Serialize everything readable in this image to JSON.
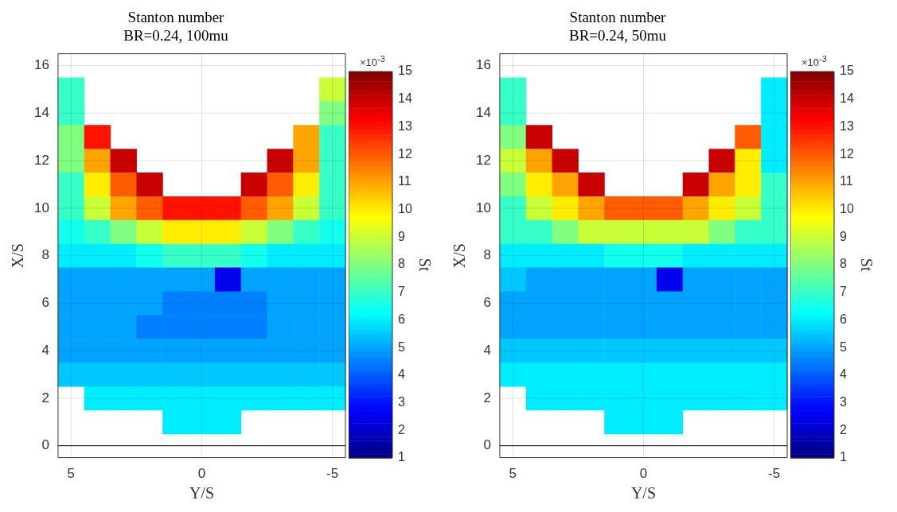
{
  "chart_data": [
    {
      "type": "heatmap",
      "title": "Stanton number",
      "subtitle": "BR=0.24, 100mu",
      "xlabel": "Y/S",
      "ylabel": "X/S",
      "clabel": "St",
      "annotations": [
        "×10$^{-3}$"
      ],
      "grid": true,
      "categories": [
        "5",
        null,
        null,
        null,
        null,
        "0",
        null,
        null,
        null,
        null,
        "-5"
      ],
      "y_categories": [
        "16",
        null,
        "14",
        null,
        "12",
        null,
        "10",
        null,
        "8",
        null,
        "6",
        null,
        "4",
        null,
        "2",
        null,
        "0"
      ],
      "ref_lines": [
        {
          "axis": "y",
          "value": "0",
          "color": "#000000"
        }
      ],
      "clim": [
        1,
        15
      ],
      "cticks": [
        1,
        2,
        3,
        4,
        5,
        6,
        7,
        8,
        9,
        10,
        11,
        12,
        13,
        14,
        15
      ],
      "cells": [
        [
          null,
          null,
          null,
          null,
          null,
          null,
          null,
          null,
          null,
          null,
          null
        ],
        [
          7,
          null,
          null,
          null,
          null,
          null,
          null,
          null,
          null,
          null,
          9
        ],
        [
          7,
          null,
          null,
          null,
          null,
          null,
          null,
          null,
          null,
          null,
          8
        ],
        [
          8,
          13,
          null,
          null,
          null,
          null,
          null,
          null,
          null,
          11,
          7
        ],
        [
          8,
          11,
          14,
          null,
          null,
          null,
          null,
          null,
          14,
          11,
          7
        ],
        [
          7,
          10,
          12,
          14,
          null,
          null,
          null,
          14,
          12,
          10,
          7
        ],
        [
          7,
          9,
          11,
          12,
          13,
          13,
          13,
          12,
          11,
          9,
          7
        ],
        [
          6.5,
          7,
          8,
          9,
          10,
          10,
          10,
          9,
          8,
          7,
          6.5
        ],
        [
          6,
          6,
          6,
          6.5,
          7,
          7,
          7,
          6.5,
          6,
          6,
          6
        ],
        [
          5,
          5,
          5,
          5,
          5,
          5,
          2.5,
          5,
          5,
          5,
          5
        ],
        [
          5,
          5,
          5,
          5,
          4.5,
          4.5,
          4.5,
          4.5,
          5,
          5,
          5
        ],
        [
          5,
          5,
          5,
          4.5,
          4.5,
          4.5,
          4.5,
          4.5,
          5,
          5,
          5
        ],
        [
          5,
          5,
          5,
          5,
          5,
          5,
          5,
          5,
          5,
          5,
          5
        ],
        [
          5.5,
          5.5,
          5.5,
          5.5,
          5.5,
          5.5,
          5.5,
          5.5,
          5.5,
          5.5,
          5.5
        ],
        [
          null,
          6,
          6,
          6,
          6,
          6,
          6,
          6,
          6,
          6,
          6
        ],
        [
          null,
          null,
          null,
          null,
          6,
          6,
          6,
          null,
          null,
          null,
          null
        ],
        [
          null,
          null,
          null,
          null,
          null,
          null,
          null,
          null,
          null,
          null,
          null
        ]
      ]
    },
    {
      "type": "heatmap",
      "title": "Stanton number",
      "subtitle": "BR=0.24, 50mu",
      "xlabel": "Y/S",
      "ylabel": "X/S",
      "clabel": "St",
      "annotations": [
        "×10$^{-3}$"
      ],
      "grid": true,
      "categories": [
        "5",
        null,
        null,
        null,
        null,
        "0",
        null,
        null,
        null,
        null,
        "-5"
      ],
      "y_categories": [
        "16",
        null,
        "14",
        null,
        "12",
        null,
        "10",
        null,
        "8",
        null,
        "6",
        null,
        "4",
        null,
        "2",
        null,
        "0"
      ],
      "ref_lines": [
        {
          "axis": "y",
          "value": "0",
          "color": "#000000"
        }
      ],
      "clim": [
        1,
        15
      ],
      "cticks": [
        1,
        2,
        3,
        4,
        5,
        6,
        7,
        8,
        9,
        10,
        11,
        12,
        13,
        14,
        15
      ],
      "cells": [
        [
          null,
          null,
          null,
          null,
          null,
          null,
          null,
          null,
          null,
          null,
          null
        ],
        [
          7,
          null,
          null,
          null,
          null,
          null,
          null,
          null,
          null,
          null,
          6
        ],
        [
          7,
          null,
          null,
          null,
          null,
          null,
          null,
          null,
          null,
          null,
          6
        ],
        [
          8,
          14,
          null,
          null,
          null,
          null,
          null,
          null,
          null,
          12,
          6
        ],
        [
          9,
          11,
          14,
          null,
          null,
          null,
          null,
          null,
          14,
          10,
          6
        ],
        [
          8,
          10,
          11,
          14,
          null,
          null,
          null,
          14,
          11,
          10,
          7
        ],
        [
          7,
          9,
          10,
          11,
          12,
          12,
          12,
          11,
          10,
          9,
          7
        ],
        [
          7,
          7,
          8,
          9,
          9,
          9,
          9,
          9,
          8,
          7,
          7
        ],
        [
          6,
          6,
          6,
          6,
          6.5,
          6.5,
          6.5,
          6,
          6,
          6,
          6
        ],
        [
          5.5,
          5,
          5,
          5,
          5,
          5,
          2.5,
          5,
          5,
          5,
          5
        ],
        [
          5,
          5,
          5,
          5,
          5,
          5,
          5,
          5,
          5,
          5,
          5
        ],
        [
          5,
          5,
          5,
          5,
          5,
          5,
          5,
          5,
          5,
          5,
          5
        ],
        [
          5.5,
          5.5,
          5.5,
          5.5,
          5.5,
          5.5,
          5.5,
          5.5,
          5.5,
          5.5,
          5.5
        ],
        [
          6,
          6,
          6,
          6,
          6,
          6,
          6,
          6,
          6,
          6,
          6
        ],
        [
          null,
          6,
          6,
          6,
          6,
          6,
          6,
          6,
          6,
          6,
          6
        ],
        [
          null,
          null,
          null,
          null,
          6,
          6,
          6,
          null,
          null,
          null,
          null
        ],
        [
          null,
          null,
          null,
          null,
          null,
          null,
          null,
          null,
          null,
          null,
          null
        ]
      ]
    }
  ]
}
